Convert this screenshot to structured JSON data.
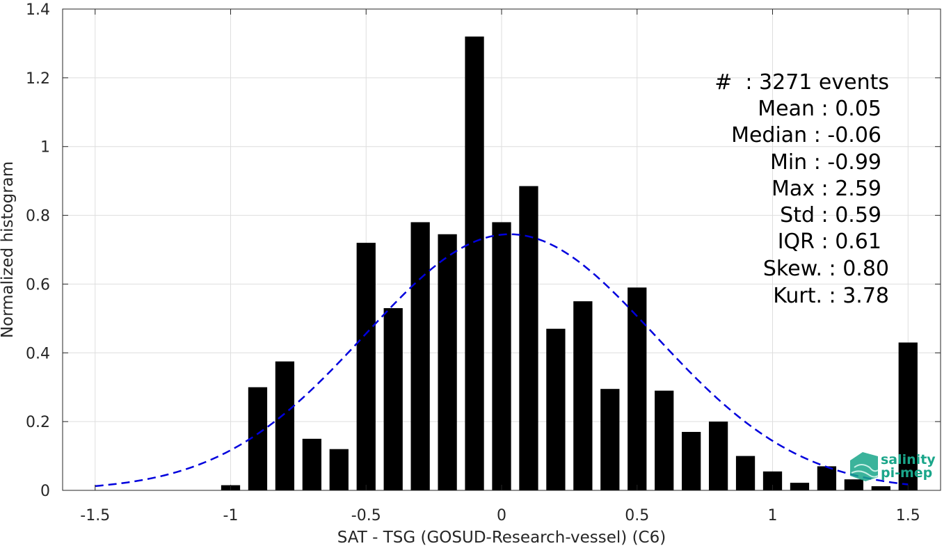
{
  "chart_data": {
    "type": "bar",
    "xlabel": "SAT - TSG (GOSUD-Research-vessel) (C6)",
    "ylabel": "Normalized histogram",
    "xlim": [
      -1.62,
      1.62
    ],
    "ylim": [
      0,
      1.4
    ],
    "xticks": [
      -1.5,
      -1,
      -0.5,
      0,
      0.5,
      1,
      1.5
    ],
    "xtick_labels": [
      "-1.5",
      "-1",
      "-0.5",
      "0",
      "0.5",
      "1",
      "1.5"
    ],
    "yticks": [
      0,
      0.2,
      0.4,
      0.6,
      0.8,
      1,
      1.2,
      1.4
    ],
    "ytick_labels": [
      "0",
      "0.2",
      "0.4",
      "0.6",
      "0.8",
      "1",
      "1.2",
      "1.4"
    ],
    "grid": true,
    "bar_width": 0.07,
    "bar_color": "#000000",
    "bars": [
      {
        "x": -1.0,
        "y": 0.015
      },
      {
        "x": -0.9,
        "y": 0.3
      },
      {
        "x": -0.8,
        "y": 0.375
      },
      {
        "x": -0.7,
        "y": 0.15
      },
      {
        "x": -0.6,
        "y": 0.12
      },
      {
        "x": -0.5,
        "y": 0.72
      },
      {
        "x": -0.4,
        "y": 0.53
      },
      {
        "x": -0.3,
        "y": 0.78
      },
      {
        "x": -0.2,
        "y": 0.745
      },
      {
        "x": -0.1,
        "y": 1.32
      },
      {
        "x": 0.0,
        "y": 0.78
      },
      {
        "x": 0.1,
        "y": 0.885
      },
      {
        "x": 0.2,
        "y": 0.47
      },
      {
        "x": 0.3,
        "y": 0.55
      },
      {
        "x": 0.4,
        "y": 0.295
      },
      {
        "x": 0.5,
        "y": 0.59
      },
      {
        "x": 0.6,
        "y": 0.29
      },
      {
        "x": 0.7,
        "y": 0.17
      },
      {
        "x": 0.8,
        "y": 0.2
      },
      {
        "x": 0.9,
        "y": 0.1
      },
      {
        "x": 1.0,
        "y": 0.055
      },
      {
        "x": 1.1,
        "y": 0.022
      },
      {
        "x": 1.2,
        "y": 0.07
      },
      {
        "x": 1.3,
        "y": 0.032
      },
      {
        "x": 1.4,
        "y": 0.012
      },
      {
        "x": 1.5,
        "y": 0.43
      }
    ],
    "fit_curve": {
      "type": "gaussian",
      "mean": 0.03,
      "std": 0.535,
      "peak": 0.745,
      "x_range": [
        -1.5,
        1.5
      ],
      "color": "#0000dd",
      "style": "dashed"
    }
  },
  "stats": {
    "lines": [
      "#  : 3271 events",
      "Mean : 0.05",
      "Median : -0.06",
      "Min : -0.99",
      "Max : 2.59",
      "Std : 0.59",
      "IQR : 0.61",
      "Skew. : 0.80",
      "Kurt. : 3.78"
    ]
  },
  "logo": {
    "line1": "salinity",
    "line2": "pi-mep",
    "color": "#1aa68a",
    "icon": "salinity-pimep-logo-icon"
  }
}
